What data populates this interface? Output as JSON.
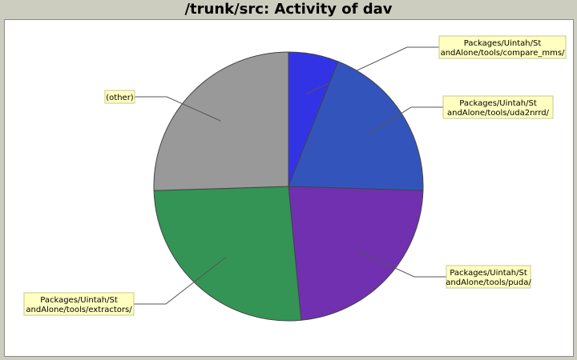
{
  "chart_title": "/trunk/src: Activity of dav",
  "chart_data": {
    "type": "pie",
    "title": "/trunk/src: Activity of dav",
    "legend": "none",
    "slices": [
      {
        "label_lines": [
          "Packages/Uintah/St",
          "andAlone/tools/compare_mms/"
        ],
        "value": 6.0,
        "color": "#3333e6"
      },
      {
        "label_lines": [
          "Packages/Uintah/St",
          "andAlone/tools/uda2nrrd/"
        ],
        "value": 19.5,
        "color": "#3355bb"
      },
      {
        "label_lines": [
          "Packages/Uintah/St",
          "andAlone/tools/puda/"
        ],
        "value": 23.0,
        "color": "#7030b0"
      },
      {
        "label_lines": [
          "Packages/Uintah/St",
          "andAlone/tools/extractors/"
        ],
        "value": 26.0,
        "color": "#339455"
      },
      {
        "label_lines": [
          "(other)"
        ],
        "value": 25.5,
        "color": "#999999"
      }
    ]
  }
}
